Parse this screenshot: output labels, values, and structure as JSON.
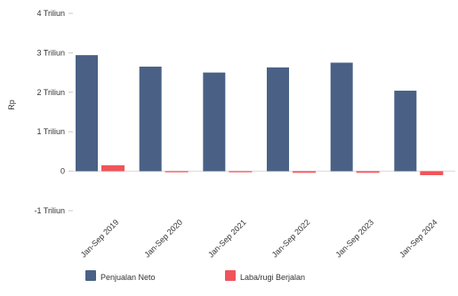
{
  "chart_data": {
    "type": "bar",
    "title": "",
    "xlabel": "",
    "ylabel": "Rp",
    "ylim": [
      -1,
      4
    ],
    "yticks": [
      {
        "value": 4,
        "label": "4 Triliun"
      },
      {
        "value": 3,
        "label": "3 Triliun"
      },
      {
        "value": 2,
        "label": "2 Triliun"
      },
      {
        "value": 1,
        "label": "1 Triliun"
      },
      {
        "value": 0,
        "label": "0"
      },
      {
        "value": -1,
        "label": "-1 Triliun"
      }
    ],
    "categories": [
      "Jan-Sep 2019",
      "Jan-Sep 2020",
      "Jan-Sep 2021",
      "Jan-Sep 2022",
      "Jan-Sep 2023",
      "Jan-Sep 2024"
    ],
    "series": [
      {
        "name": "Penjualan Neto",
        "color": "#4a6185",
        "values": [
          2.94,
          2.65,
          2.5,
          2.63,
          2.75,
          2.04
        ]
      },
      {
        "name": "Laba/rugi Berjalan",
        "color": "#f0545a",
        "values": [
          0.15,
          -0.01,
          -0.01,
          -0.04,
          -0.04,
          -0.1
        ]
      }
    ],
    "grid": false,
    "legend_position": "bottom-left"
  }
}
